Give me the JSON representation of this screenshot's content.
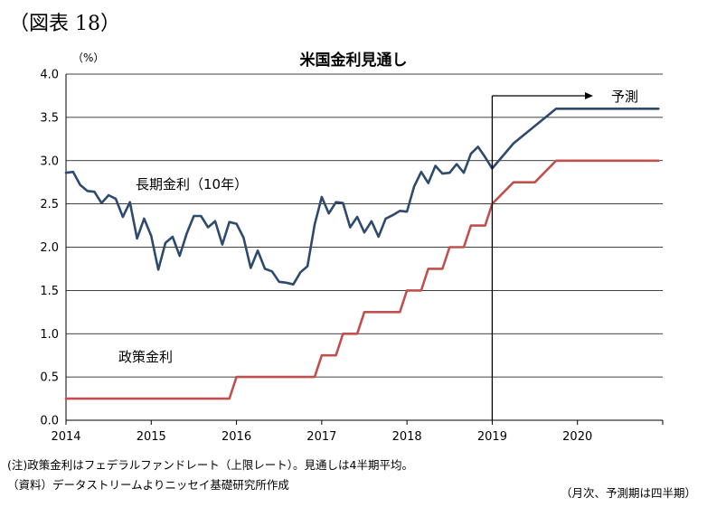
{
  "figure_label": "（図表 18）",
  "footnotes": {
    "note": "(注)政策金利はフェデラルファンドレート（上限レート）。見通しは4半期平均。",
    "source": "（資料）データストリームよりニッセイ基礎研究所作成",
    "period": "（月次、予測期は四半期）"
  },
  "chart_data": {
    "type": "line",
    "title": "米国金利見通し",
    "unit_label": "（%）",
    "ylim": [
      0,
      4.0
    ],
    "y_ticks": [
      "0.0",
      "0.5",
      "1.0",
      "1.5",
      "2.0",
      "2.5",
      "3.0",
      "3.5",
      "4.0"
    ],
    "x_ticks": [
      "2014",
      "2015",
      "2016",
      "2017",
      "2018",
      "2019",
      "2020"
    ],
    "xlim": [
      2014.0,
      2021.0
    ],
    "grid": true,
    "forecast_label": "予測",
    "forecast_start": 2019.0,
    "colors": {
      "long": "#2e4a6e",
      "policy": "#c0504d",
      "axis": "#000000",
      "grid": "#000000"
    },
    "series": [
      {
        "name": "長期金利（10年）",
        "key": "long",
        "x": [
          2014.0,
          2014.0833,
          2014.1667,
          2014.25,
          2014.3333,
          2014.4167,
          2014.5,
          2014.5833,
          2014.6667,
          2014.75,
          2014.8333,
          2014.9167,
          2015.0,
          2015.0833,
          2015.1667,
          2015.25,
          2015.3333,
          2015.4167,
          2015.5,
          2015.5833,
          2015.6667,
          2015.75,
          2015.8333,
          2015.9167,
          2016.0,
          2016.0833,
          2016.1667,
          2016.25,
          2016.3333,
          2016.4167,
          2016.5,
          2016.5833,
          2016.6667,
          2016.75,
          2016.8333,
          2016.9167,
          2017.0,
          2017.0833,
          2017.1667,
          2017.25,
          2017.3333,
          2017.4167,
          2017.5,
          2017.5833,
          2017.6667,
          2017.75,
          2017.8333,
          2017.9167,
          2018.0,
          2018.0833,
          2018.1667,
          2018.25,
          2018.3333,
          2018.4167,
          2018.5,
          2018.5833,
          2018.6667,
          2018.75,
          2018.8333,
          2018.9167,
          2019.0,
          2019.25,
          2019.5,
          2019.75,
          2020.0,
          2020.25,
          2020.5,
          2020.75,
          2020.95
        ],
        "values": [
          2.86,
          2.87,
          2.72,
          2.65,
          2.64,
          2.51,
          2.6,
          2.56,
          2.35,
          2.52,
          2.1,
          2.33,
          2.13,
          1.74,
          2.05,
          2.12,
          1.9,
          2.16,
          2.36,
          2.36,
          2.23,
          2.3,
          2.03,
          2.29,
          2.27,
          2.11,
          1.76,
          1.96,
          1.75,
          1.72,
          1.6,
          1.59,
          1.57,
          1.71,
          1.78,
          2.26,
          2.58,
          2.39,
          2.52,
          2.51,
          2.23,
          2.35,
          2.17,
          2.3,
          2.12,
          2.33,
          2.37,
          2.42,
          2.41,
          2.7,
          2.87,
          2.74,
          2.94,
          2.85,
          2.86,
          2.96,
          2.86,
          3.08,
          3.16,
          3.04,
          2.91,
          3.2,
          3.4,
          3.6,
          3.6,
          3.6,
          3.6,
          3.6,
          3.6
        ]
      },
      {
        "name": "政策金利",
        "key": "policy",
        "x": [
          2014.0,
          2015.9167,
          2016.0,
          2016.9167,
          2017.0,
          2017.1667,
          2017.25,
          2017.4167,
          2017.5,
          2017.9167,
          2018.0,
          2018.1667,
          2018.25,
          2018.4167,
          2018.5,
          2018.6667,
          2018.75,
          2018.9167,
          2019.0,
          2019.25,
          2019.5,
          2019.75,
          2020.0,
          2020.25,
          2020.5,
          2020.75,
          2020.95
        ],
        "values": [
          0.25,
          0.25,
          0.5,
          0.5,
          0.75,
          0.75,
          1.0,
          1.0,
          1.25,
          1.25,
          1.5,
          1.5,
          1.75,
          1.75,
          2.0,
          2.0,
          2.25,
          2.25,
          2.5,
          2.75,
          2.75,
          3.0,
          3.0,
          3.0,
          3.0,
          3.0,
          3.0
        ]
      }
    ]
  }
}
